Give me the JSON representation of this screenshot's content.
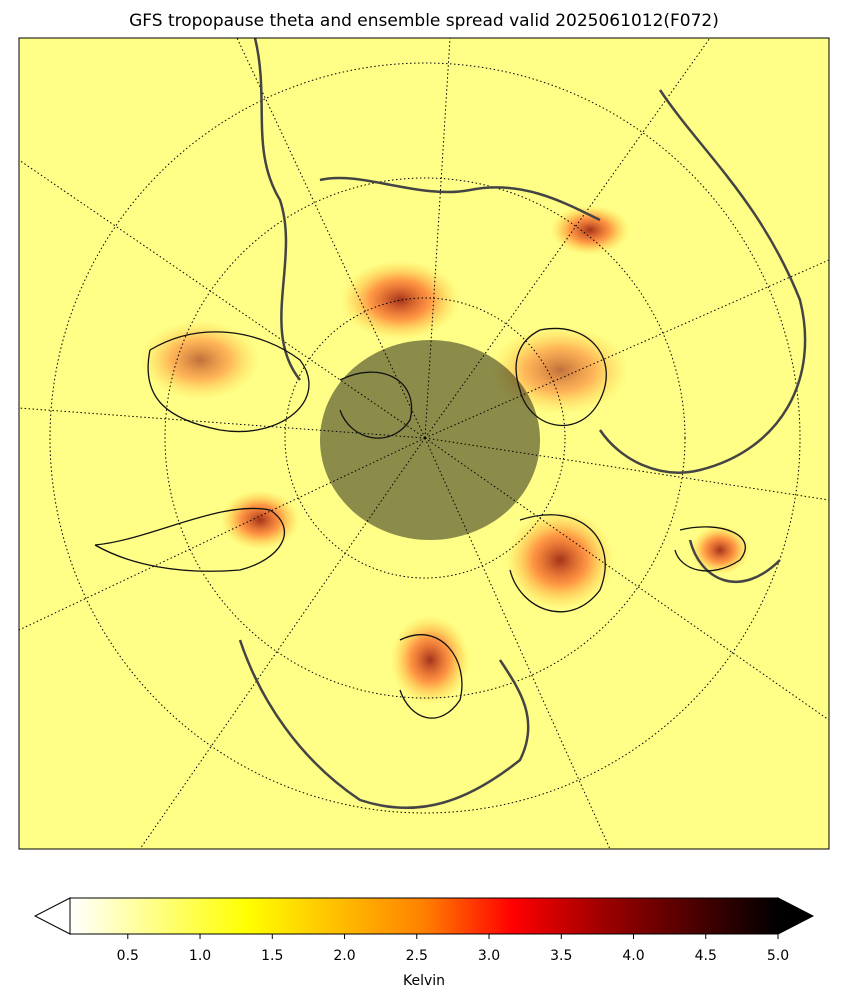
{
  "chart_data": {
    "type": "map",
    "title": "GFS tropopause theta and ensemble spread valid 2025061012(F072)",
    "colorbar": {
      "label": "Kelvin",
      "clim": [
        0.1,
        5
      ],
      "ticks": [
        0.5,
        {
          "value": 1,
          "label": "1.0"
        },
        1.5,
        {
          "value": 2,
          "label": "2.0"
        },
        2.5,
        {
          "value": 3,
          "label": "3.0"
        },
        3.5,
        {
          "value": 4,
          "label": "4.0"
        },
        4.5,
        {
          "value": 5,
          "label": "5.0"
        }
      ],
      "colormap": [
        "#ffffff",
        "#ffff80",
        "#ffff00",
        "#ffc000",
        "#ff8000",
        "#ff0000",
        "#a00000",
        "#500000",
        "#000000"
      ],
      "extend": "both"
    }
  }
}
